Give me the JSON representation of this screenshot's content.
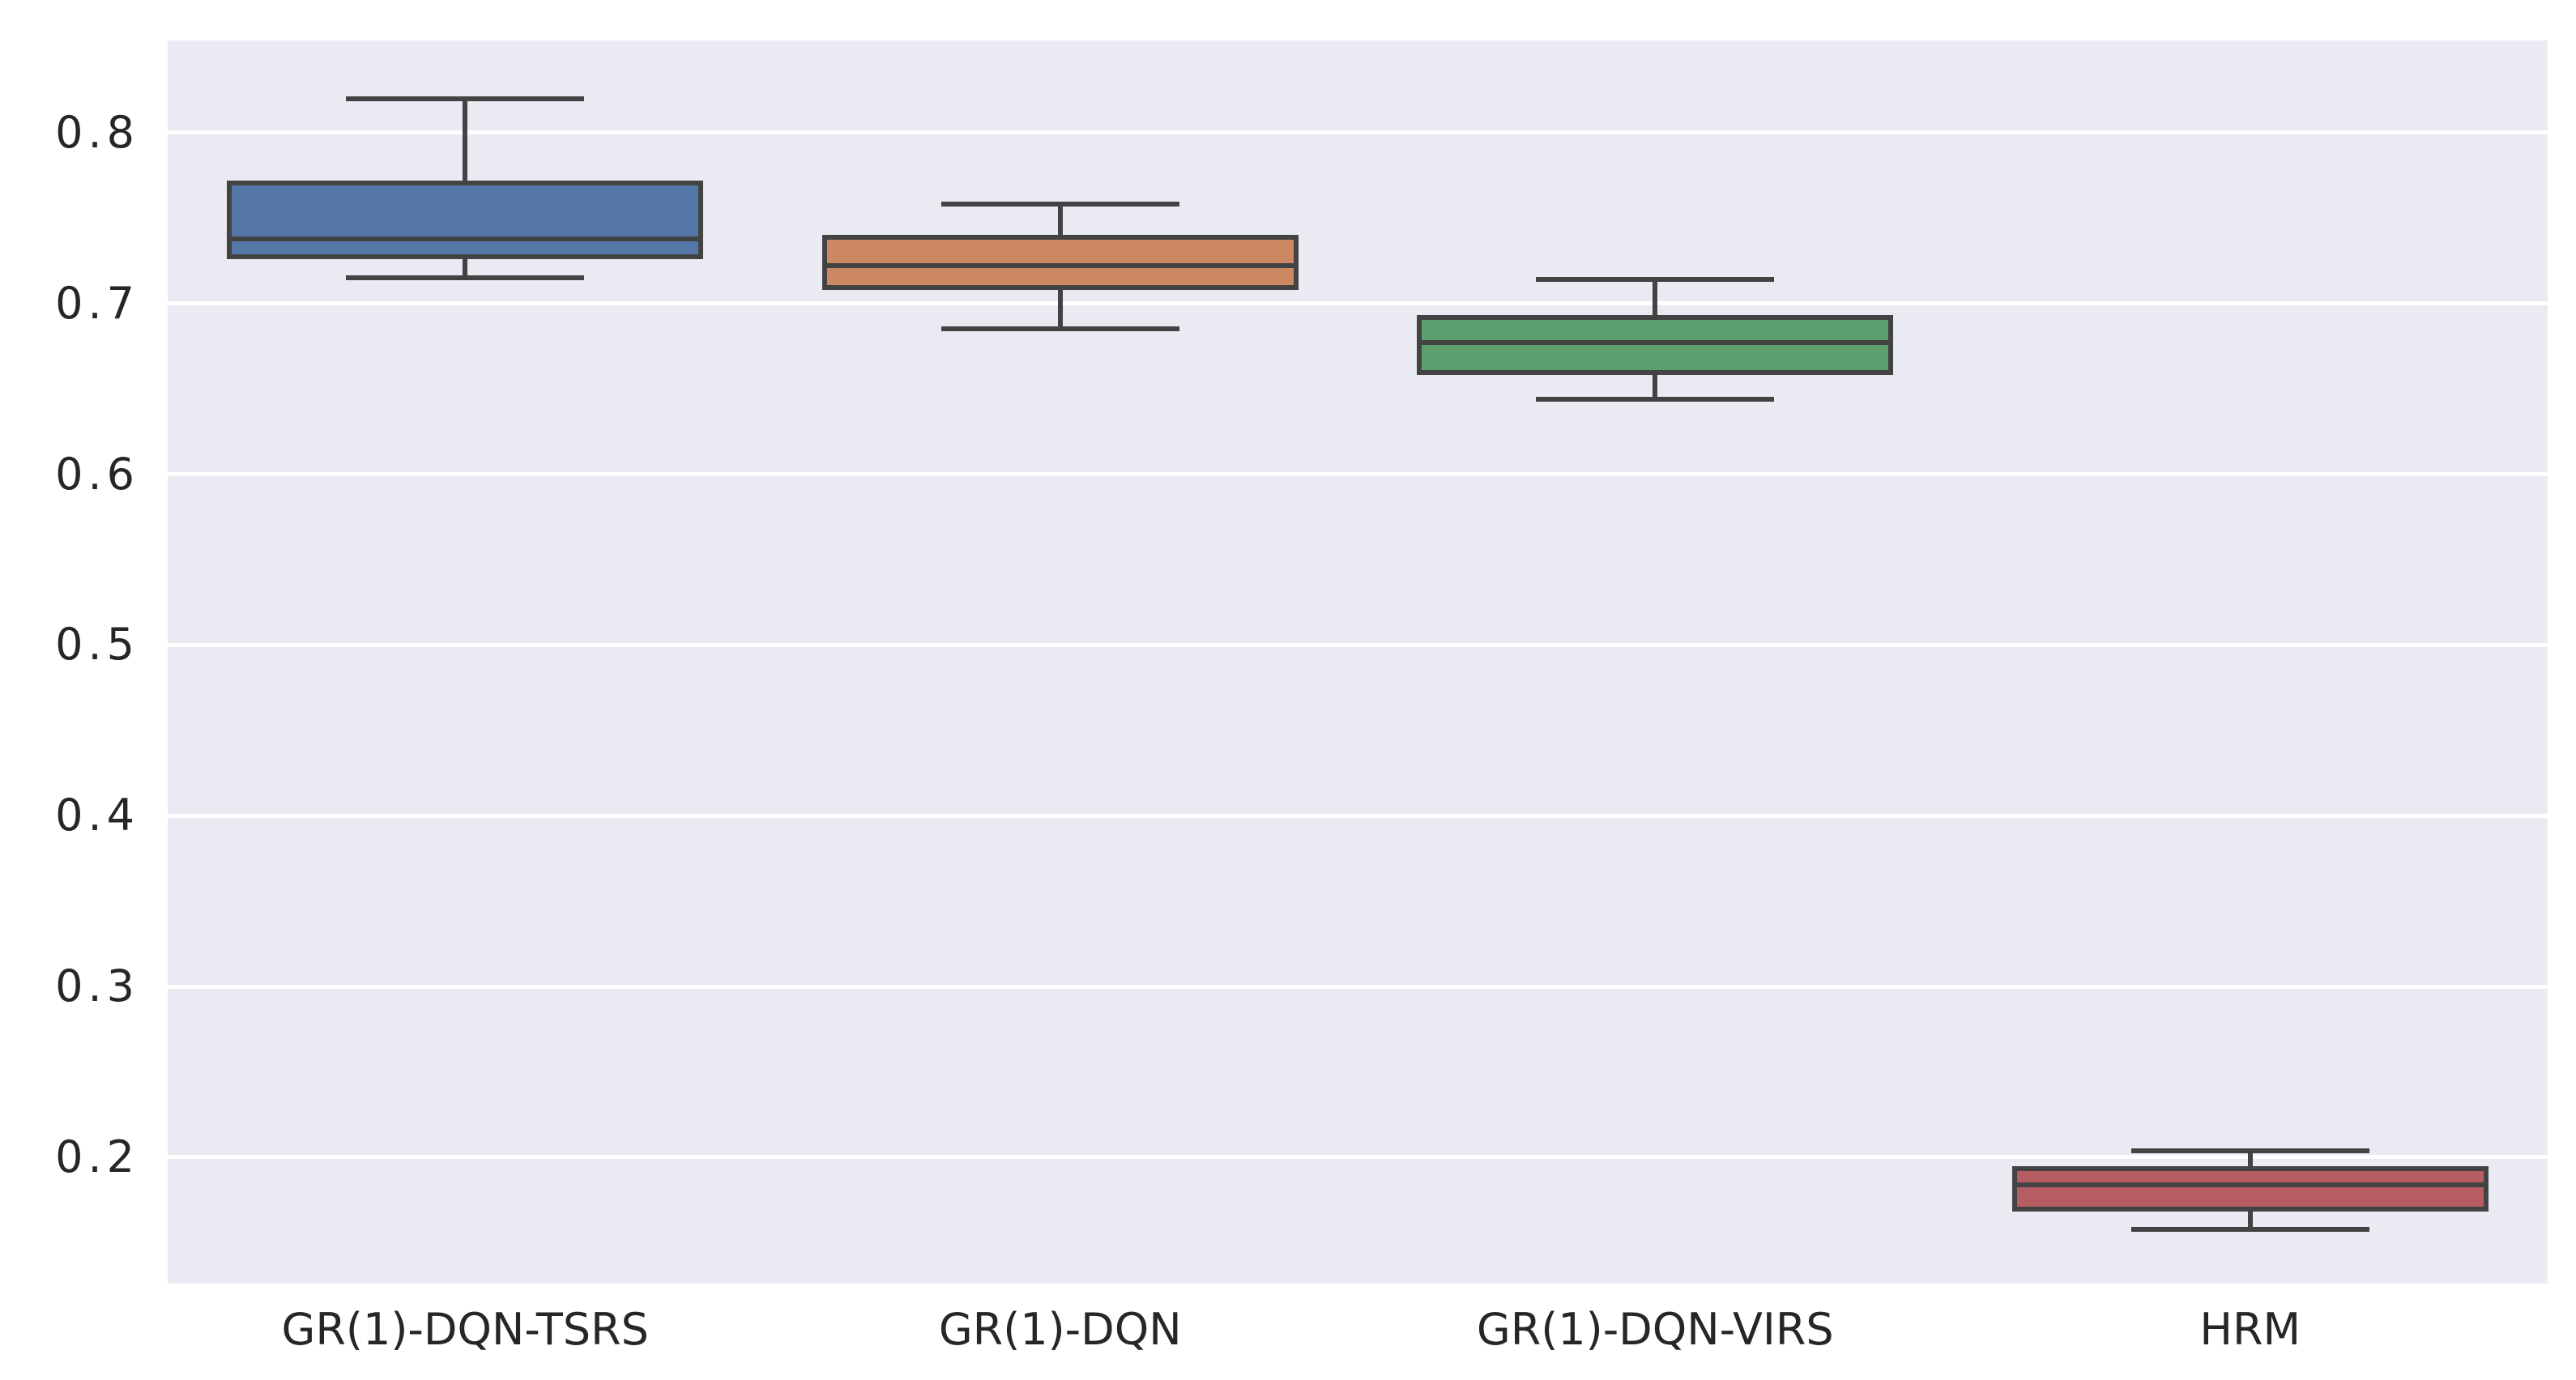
{
  "chart_data": {
    "type": "boxplot",
    "title": "",
    "xlabel": "",
    "ylabel": "",
    "categories": [
      "GR(1)-DQN-TSRS",
      "GR(1)-DQN",
      "GR(1)-DQN-VIRS",
      "HRM"
    ],
    "series": [
      {
        "name": "GR(1)-DQN-TSRS",
        "color": "#5577A8",
        "whisker_low": 0.715,
        "q1": 0.726,
        "median": 0.738,
        "q3": 0.772,
        "whisker_high": 0.82
      },
      {
        "name": "GR(1)-DQN",
        "color": "#CC8862",
        "whisker_low": 0.685,
        "q1": 0.708,
        "median": 0.722,
        "q3": 0.74,
        "whisker_high": 0.758
      },
      {
        "name": "GR(1)-DQN-VIRS",
        "color": "#5D9E6E",
        "whisker_low": 0.644,
        "q1": 0.658,
        "median": 0.677,
        "q3": 0.693,
        "whisker_high": 0.714
      },
      {
        "name": "HRM",
        "color": "#B55D63",
        "whisker_low": 0.158,
        "q1": 0.168,
        "median": 0.184,
        "q3": 0.195,
        "whisker_high": 0.204
      }
    ],
    "yticks": [
      0.8,
      0.7,
      0.6,
      0.5,
      0.4,
      0.3,
      0.2
    ],
    "ytick_labels": [
      "0.8",
      "0.7",
      "0.6",
      "0.5",
      "0.4",
      "0.3",
      "0.2"
    ],
    "ylim": [
      0.126,
      0.854
    ],
    "grid": {
      "horizontal": true,
      "vertical": false,
      "color": "#FFFFFF"
    },
    "legend": {
      "visible": false
    },
    "plot_background": "#EAEAF2",
    "figure_background": "#FFFFFF",
    "line_color": "#434343",
    "tick_label_color": "#262626"
  }
}
